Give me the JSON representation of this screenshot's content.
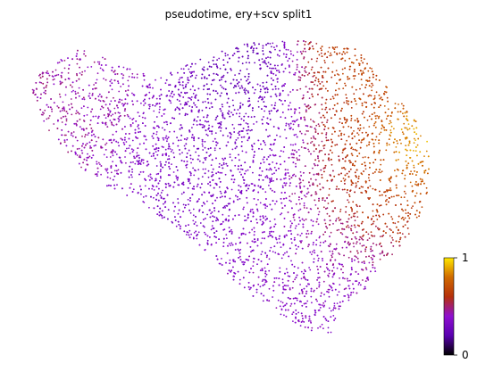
{
  "chart_data": {
    "type": "scatter",
    "title": "pseudotime, ery+scv split1",
    "xlabel": "",
    "ylabel": "",
    "axes_visible": false,
    "grid": false,
    "colormap": "gnuplot",
    "colorbar": {
      "label": "",
      "min": 0,
      "max": 1,
      "tick_labels": [
        "0",
        "1"
      ],
      "placement": "right-bottom"
    },
    "point_count_estimate": 7000,
    "regions": [
      {
        "name": "upper-left lobe",
        "pseudotime": 0.45
      },
      {
        "name": "central band",
        "pseudotime": 0.32
      },
      {
        "name": "top-center patch",
        "pseudotime": 0.22
      },
      {
        "name": "lower lobe",
        "pseudotime": 0.38
      },
      {
        "name": "right edge",
        "pseudotime": 0.72
      },
      {
        "name": "top-right cluster",
        "pseudotime": 0.68
      },
      {
        "name": "far-right tip",
        "pseudotime": 0.98
      }
    ]
  }
}
